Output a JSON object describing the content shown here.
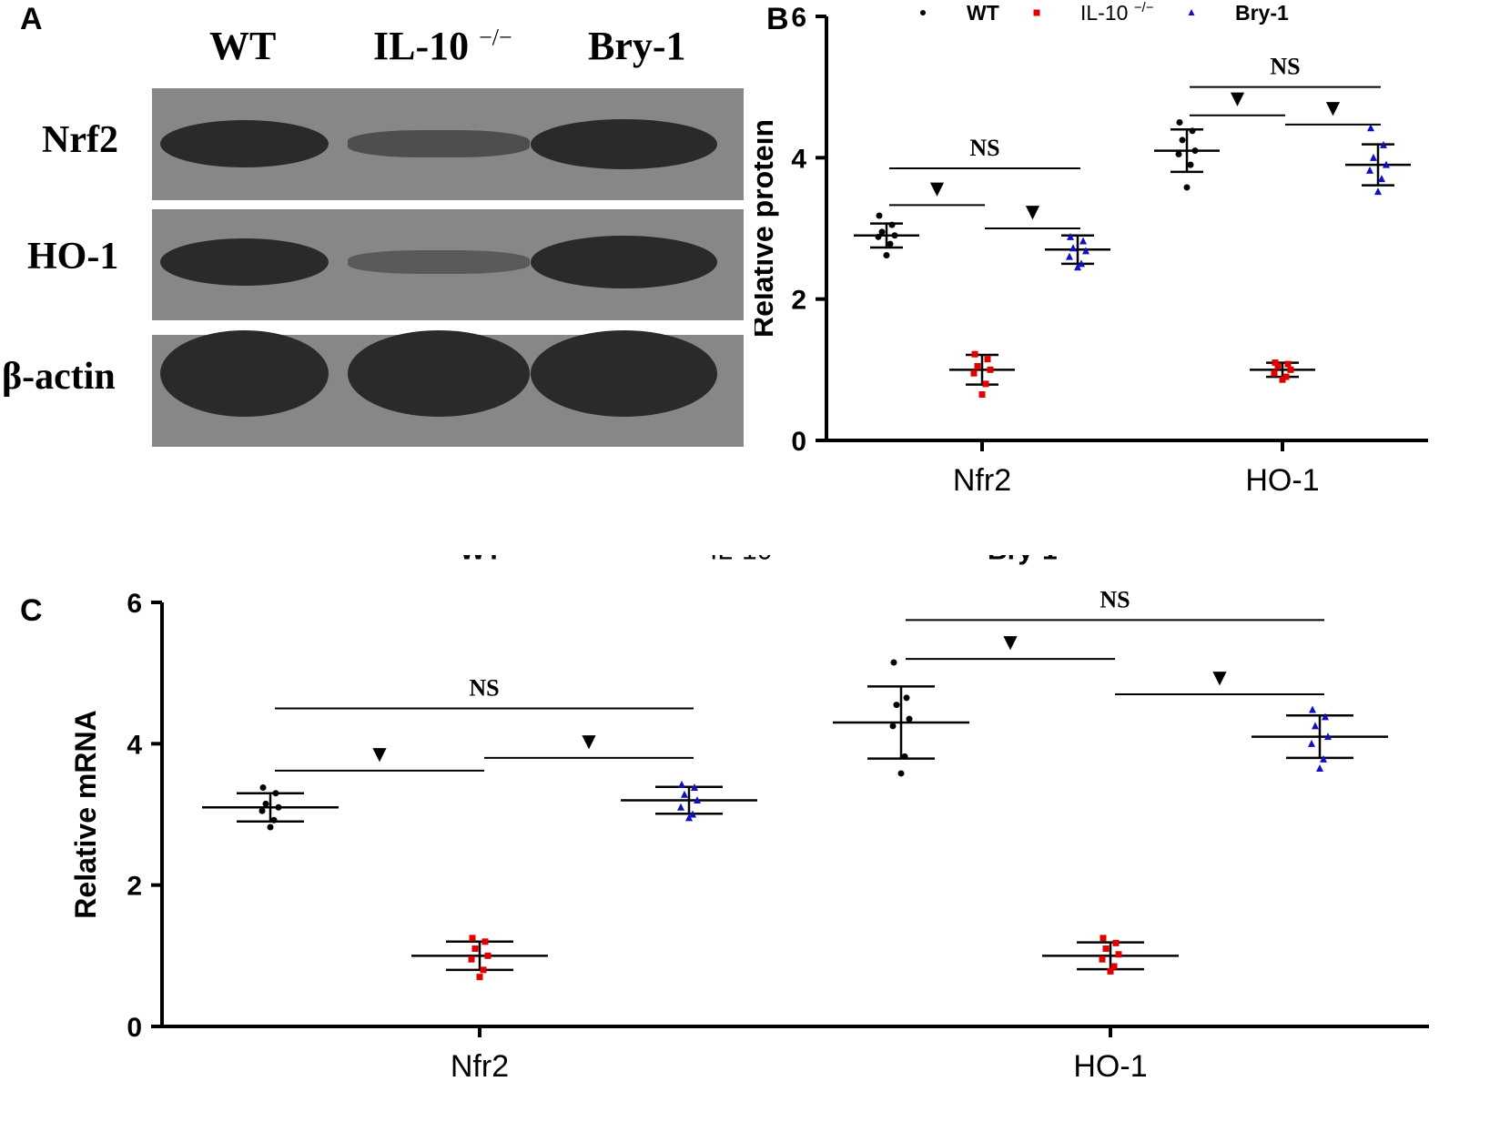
{
  "panels": {
    "a": "A",
    "b": "B",
    "c": "C"
  },
  "blot": {
    "lanes": [
      "WT",
      "IL-10",
      "Bry-1"
    ],
    "lane_sup": "−/−",
    "rows": [
      "Nrf2",
      "HO-1",
      "β-actin"
    ],
    "intensity": [
      [
        1.0,
        0.4,
        1.0
      ],
      [
        1.0,
        0.2,
        1.0
      ],
      [
        1.0,
        1.0,
        1.0
      ]
    ]
  },
  "legend": {
    "items": [
      {
        "label": "WT",
        "sup": "",
        "bold": true,
        "color": "#000000",
        "marker": "circle"
      },
      {
        "label": "IL-10 ",
        "sup": "−/−",
        "bold": false,
        "color": "#e00000",
        "marker": "square"
      },
      {
        "label": "Bry-1",
        "sup": "",
        "bold": true,
        "color": "#1010c0",
        "marker": "triangle"
      }
    ]
  },
  "chart_data": [
    {
      "panel": "B",
      "type": "scatter",
      "ylabel": "Relative protein",
      "xlabel": "",
      "categories": [
        "Nfr2",
        "HO-1"
      ],
      "ylim": [
        0,
        6
      ],
      "yticks": [
        0,
        2,
        4,
        6
      ],
      "series": [
        {
          "name": "WT",
          "color": "#000000",
          "marker": "circle",
          "groups": [
            {
              "mean": 2.9,
              "sd": 0.17,
              "points": [
                3.18,
                3.05,
                2.95,
                2.9,
                2.88,
                2.78,
                2.62
              ]
            },
            {
              "mean": 4.1,
              "sd": 0.3,
              "points": [
                4.5,
                4.38,
                4.25,
                4.1,
                4.05,
                3.9,
                3.58
              ]
            }
          ]
        },
        {
          "name": "IL-10 −/−",
          "color": "#e00000",
          "marker": "square",
          "groups": [
            {
              "mean": 1.0,
              "sd": 0.21,
              "points": [
                1.22,
                1.15,
                1.05,
                1.0,
                0.95,
                0.8,
                0.65
              ]
            },
            {
              "mean": 1.0,
              "sd": 0.1,
              "points": [
                1.1,
                1.08,
                1.05,
                1.0,
                0.95,
                0.9,
                0.86
              ]
            }
          ]
        },
        {
          "name": "Bry-1",
          "color": "#1010c0",
          "marker": "triangle",
          "groups": [
            {
              "mean": 2.7,
              "sd": 0.2,
              "points": [
                2.88,
                2.82,
                2.72,
                2.68,
                2.6,
                2.5,
                2.45
              ]
            },
            {
              "mean": 3.9,
              "sd": 0.29,
              "points": [
                4.42,
                4.18,
                4.0,
                3.9,
                3.82,
                3.7,
                3.52
              ]
            }
          ]
        }
      ],
      "annotations": [
        {
          "text": "NS",
          "category": 0,
          "between": [
            "WT",
            "Bry-1"
          ],
          "y": 3.85
        },
        {
          "text": "▼",
          "category": 0,
          "between": [
            "WT",
            "IL-10 −/−"
          ],
          "y": 3.33
        },
        {
          "text": "▼",
          "category": 0,
          "between": [
            "IL-10 −/−",
            "Bry-1"
          ],
          "y": 3.0
        },
        {
          "text": "NS",
          "category": 1,
          "between": [
            "WT",
            "Bry-1"
          ],
          "y": 5.0
        },
        {
          "text": "▼",
          "category": 1,
          "between": [
            "WT",
            "IL-10 −/−"
          ],
          "y": 4.6
        },
        {
          "text": "▼",
          "category": 1,
          "between": [
            "IL-10 −/−",
            "Bry-1"
          ],
          "y": 4.47
        }
      ]
    },
    {
      "panel": "C",
      "type": "scatter",
      "ylabel": "Relative mRNA",
      "xlabel": "",
      "categories": [
        "Nfr2",
        "HO-1"
      ],
      "ylim": [
        0,
        6
      ],
      "yticks": [
        0,
        2,
        4,
        6
      ],
      "series": [
        {
          "name": "WT",
          "color": "#000000",
          "marker": "circle",
          "groups": [
            {
              "mean": 3.1,
              "sd": 0.2,
              "points": [
                3.38,
                3.3,
                3.15,
                3.1,
                3.05,
                2.92,
                2.82
              ]
            },
            {
              "mean": 4.3,
              "sd": 0.51,
              "points": [
                5.15,
                4.65,
                4.55,
                4.35,
                4.25,
                3.82,
                3.58
              ]
            }
          ]
        },
        {
          "name": "IL-10 −/−",
          "color": "#e00000",
          "marker": "square",
          "groups": [
            {
              "mean": 1.0,
              "sd": 0.2,
              "points": [
                1.25,
                1.2,
                1.1,
                1.0,
                0.95,
                0.8,
                0.7
              ]
            },
            {
              "mean": 1.0,
              "sd": 0.19,
              "points": [
                1.25,
                1.18,
                1.1,
                1.02,
                0.95,
                0.85,
                0.78
              ]
            }
          ]
        },
        {
          "name": "Bry-1",
          "color": "#1010c0",
          "marker": "triangle",
          "groups": [
            {
              "mean": 3.2,
              "sd": 0.19,
              "points": [
                3.42,
                3.38,
                3.28,
                3.2,
                3.1,
                3.0,
                2.95
              ]
            },
            {
              "mean": 4.1,
              "sd": 0.3,
              "points": [
                4.48,
                4.38,
                4.25,
                4.1,
                4.0,
                3.78,
                3.65
              ]
            }
          ]
        }
      ],
      "annotations": [
        {
          "text": "NS",
          "category": 0,
          "between": [
            "WT",
            "Bry-1"
          ],
          "y": 4.5
        },
        {
          "text": "▼",
          "category": 0,
          "between": [
            "WT",
            "IL-10 −/−"
          ],
          "y": 3.62
        },
        {
          "text": "▼",
          "category": 0,
          "between": [
            "IL-10 −/−",
            "Bry-1"
          ],
          "y": 3.8
        },
        {
          "text": "NS",
          "category": 1,
          "between": [
            "WT",
            "Bry-1"
          ],
          "y": 5.75
        },
        {
          "text": "▼",
          "category": 1,
          "between": [
            "WT",
            "IL-10 −/−"
          ],
          "y": 5.2
        },
        {
          "text": "▼",
          "category": 1,
          "between": [
            "IL-10 −/−",
            "Bry-1"
          ],
          "y": 4.7
        }
      ]
    }
  ]
}
